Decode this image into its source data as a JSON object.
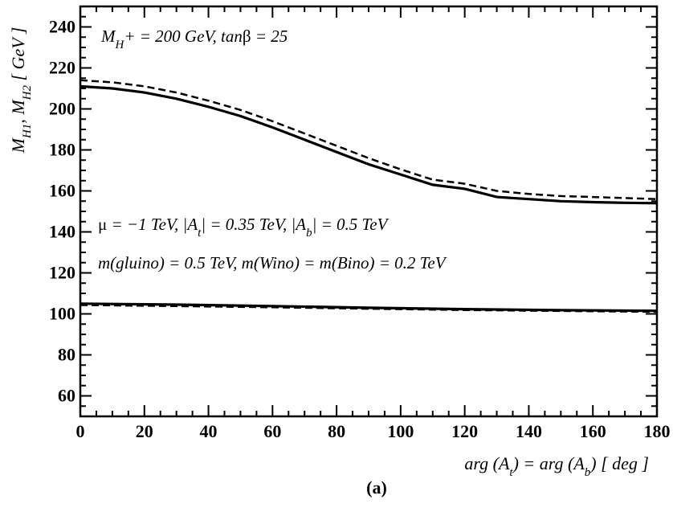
{
  "chart_data": {
    "type": "line",
    "title": "",
    "caption": "(a)",
    "xlabel": {
      "parts": [
        {
          "t": "arg (A"
        },
        {
          "t": "t",
          "sub": true
        },
        {
          "t": ") = arg (A"
        },
        {
          "t": "b",
          "sub": true
        },
        {
          "t": ")  [ deg ]"
        }
      ]
    },
    "ylabel": {
      "parts": [
        {
          "t": "M"
        },
        {
          "t": "H1",
          "sub": true
        },
        {
          "t": ",  M"
        },
        {
          "t": "H2",
          "sub": true
        },
        {
          "t": "  [ GeV ]"
        }
      ]
    },
    "xlim": [
      0,
      180
    ],
    "ylim": [
      50,
      250
    ],
    "xticks": [
      0,
      20,
      40,
      60,
      80,
      100,
      120,
      140,
      160,
      180
    ],
    "yticks": [
      60,
      80,
      100,
      120,
      140,
      160,
      180,
      200,
      220,
      240
    ],
    "annotations": [
      {
        "parts": [
          {
            "t": "M"
          },
          {
            "t": "H",
            "sub": true
          },
          {
            "t": "+ = 200 GeV,   tan"
          },
          {
            "t": "β",
            "up": true
          },
          {
            "t": " = 25"
          }
        ]
      },
      {
        "parts": [
          {
            "t": "μ",
            "up": true
          },
          {
            "t": " = −1 TeV,    |A"
          },
          {
            "t": "t",
            "sub": true
          },
          {
            "t": "| = 0.35 TeV,    |A"
          },
          {
            "t": "b",
            "sub": true
          },
          {
            "t": "| = 0.5 TeV"
          }
        ]
      },
      {
        "parts": [
          {
            "t": "m(gluino) = 0.5 TeV,   m(Wino) = m(Bino) = 0.2 TeV"
          }
        ]
      }
    ],
    "series": [
      {
        "style": "solid",
        "x": [
          0,
          10,
          20,
          30,
          40,
          50,
          60,
          70,
          80,
          90,
          100,
          110,
          120,
          130,
          140,
          150,
          160,
          170,
          180
        ],
        "y": [
          211.0,
          210.0,
          208.0,
          205.0,
          201.0,
          196.5,
          191.0,
          185.0,
          179.0,
          173.0,
          168.0,
          163.0,
          161.0,
          157.0,
          156.0,
          155.0,
          154.5,
          154.2,
          154.0
        ]
      },
      {
        "style": "dashed",
        "x": [
          0,
          10,
          20,
          30,
          40,
          50,
          60,
          70,
          80,
          90,
          100,
          110,
          120,
          130,
          140,
          150,
          160,
          170,
          180
        ],
        "y": [
          214.0,
          213.0,
          211.0,
          208.0,
          204.0,
          199.5,
          194.0,
          188.0,
          182.0,
          176.0,
          170.5,
          165.5,
          163.5,
          160.0,
          158.5,
          157.5,
          157.0,
          156.5,
          156.0
        ]
      },
      {
        "style": "solid",
        "x": [
          0,
          30,
          60,
          90,
          120,
          150,
          180
        ],
        "y": [
          105.0,
          104.5,
          103.8,
          103.0,
          102.3,
          101.8,
          101.5
        ]
      },
      {
        "style": "dashed",
        "x": [
          0,
          30,
          60,
          90,
          120,
          150,
          180
        ],
        "y": [
          104.3,
          103.8,
          103.2,
          102.5,
          101.9,
          101.4,
          101.0
        ]
      }
    ]
  }
}
